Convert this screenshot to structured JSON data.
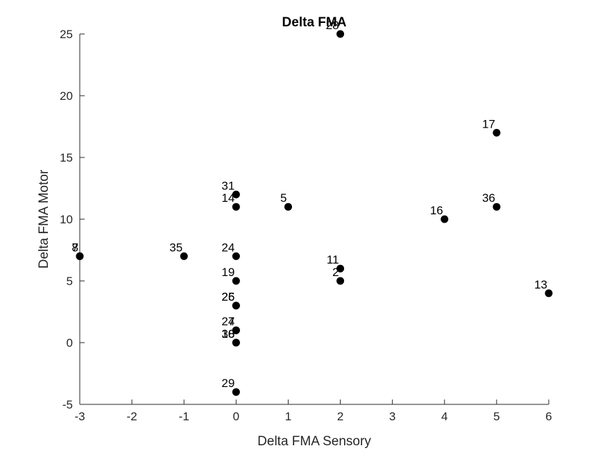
{
  "chart_data": {
    "type": "scatter",
    "title": "Delta FMA",
    "xlabel": "Delta FMA Sensory",
    "ylabel": "Delta FMA Motor",
    "xlim": [
      -3,
      6
    ],
    "ylim": [
      -5,
      25
    ],
    "xticks": [
      "-3",
      "-2",
      "-1",
      "0",
      "1",
      "2",
      "3",
      "4",
      "5",
      "6"
    ],
    "yticks": [
      "-5",
      "0",
      "5",
      "10",
      "15",
      "20",
      "25"
    ],
    "grid": false,
    "legend": "none",
    "marker_color": "#000000",
    "points": [
      {
        "label": "28",
        "x": 2,
        "y": 25
      },
      {
        "label": "17",
        "x": 5,
        "y": 17
      },
      {
        "label": "31",
        "x": 0,
        "y": 12
      },
      {
        "label": "14",
        "x": 0,
        "y": 11
      },
      {
        "label": "5",
        "x": 1,
        "y": 11
      },
      {
        "label": "36",
        "x": 5,
        "y": 11
      },
      {
        "label": "16",
        "x": 4,
        "y": 10
      },
      {
        "label": "7",
        "x": -3,
        "y": 7
      },
      {
        "label": "8",
        "x": -3,
        "y": 7
      },
      {
        "label": "35",
        "x": -1,
        "y": 7
      },
      {
        "label": "24",
        "x": 0,
        "y": 7
      },
      {
        "label": "11",
        "x": 2,
        "y": 6
      },
      {
        "label": "19",
        "x": 0,
        "y": 5
      },
      {
        "label": "2",
        "x": 2,
        "y": 5
      },
      {
        "label": "13",
        "x": 6,
        "y": 4
      },
      {
        "label": "25",
        "x": 0,
        "y": 3
      },
      {
        "label": "26",
        "x": 0,
        "y": 3
      },
      {
        "label": "27",
        "x": 0,
        "y": 1
      },
      {
        "label": "4",
        "x": 0,
        "y": 1
      },
      {
        "label": "30",
        "x": 0,
        "y": 0
      },
      {
        "label": "18",
        "x": 0,
        "y": 0
      },
      {
        "label": "29",
        "x": 0,
        "y": -4
      }
    ]
  }
}
